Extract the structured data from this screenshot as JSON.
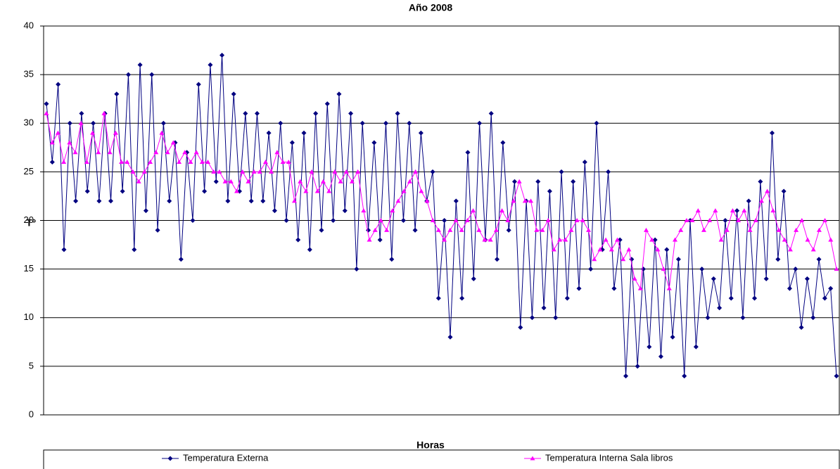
{
  "chart_data": {
    "type": "line",
    "title": "Año 2008",
    "x_label": "Horas",
    "y_label": "Tº",
    "ylim": [
      0,
      40
    ],
    "yticks": [
      0,
      5,
      10,
      15,
      20,
      25,
      30,
      35,
      40
    ],
    "grid": true,
    "series": [
      {
        "name": "Temperatura Externa",
        "color": "#000080",
        "marker": "diamond",
        "values": [
          32,
          26,
          34,
          17,
          30,
          22,
          31,
          23,
          30,
          22,
          31,
          22,
          33,
          23,
          35,
          17,
          36,
          21,
          35,
          19,
          30,
          22,
          28,
          16,
          27,
          20,
          34,
          23,
          36,
          24,
          37,
          22,
          33,
          23,
          31,
          22,
          31,
          22,
          29,
          21,
          30,
          20,
          28,
          18,
          29,
          17,
          31,
          19,
          32,
          20,
          33,
          21,
          31,
          15,
          30,
          19,
          28,
          18,
          30,
          16,
          31,
          20,
          30,
          19,
          29,
          22,
          25,
          12,
          20,
          8,
          22,
          12,
          27,
          14,
          30,
          18,
          31,
          16,
          28,
          19,
          24,
          9,
          22,
          10,
          24,
          11,
          23,
          10,
          25,
          12,
          24,
          13,
          26,
          15,
          30,
          17,
          25,
          13,
          18,
          4,
          16,
          5,
          15,
          7,
          18,
          6,
          17,
          8,
          16,
          4,
          20,
          7,
          15,
          10,
          14,
          11,
          20,
          12,
          21,
          10,
          22,
          12,
          24,
          14,
          29,
          16,
          23,
          13,
          15,
          9,
          14,
          10,
          16,
          12,
          13,
          4
        ]
      },
      {
        "name": "Temperatura Interna Sala libros",
        "color": "#ff00ff",
        "marker": "triangle",
        "values": [
          31,
          28,
          29,
          26,
          28,
          27,
          30,
          26,
          29,
          27,
          31,
          27,
          29,
          26,
          26,
          25,
          24,
          25,
          26,
          27,
          29,
          27,
          28,
          26,
          27,
          26,
          27,
          26,
          26,
          25,
          25,
          24,
          24,
          23,
          25,
          24,
          25,
          25,
          26,
          25,
          27,
          26,
          26,
          22,
          24,
          23,
          25,
          23,
          24,
          23,
          25,
          24,
          25,
          24,
          25,
          21,
          18,
          19,
          20,
          19,
          21,
          22,
          23,
          24,
          25,
          23,
          22,
          20,
          19,
          18,
          19,
          20,
          19,
          20,
          21,
          19,
          18,
          18,
          19,
          21,
          20,
          22,
          24,
          22,
          22,
          19,
          19,
          20,
          17,
          18,
          18,
          19,
          20,
          20,
          19,
          16,
          17,
          18,
          17,
          18,
          16,
          17,
          14,
          13,
          19,
          18,
          17,
          15,
          13,
          18,
          19,
          20,
          20,
          21,
          19,
          20,
          21,
          18,
          19,
          21,
          20,
          21,
          19,
          20,
          22,
          23,
          21,
          19,
          18,
          17,
          19,
          20,
          18,
          17,
          19,
          20,
          18,
          15
        ]
      }
    ]
  }
}
